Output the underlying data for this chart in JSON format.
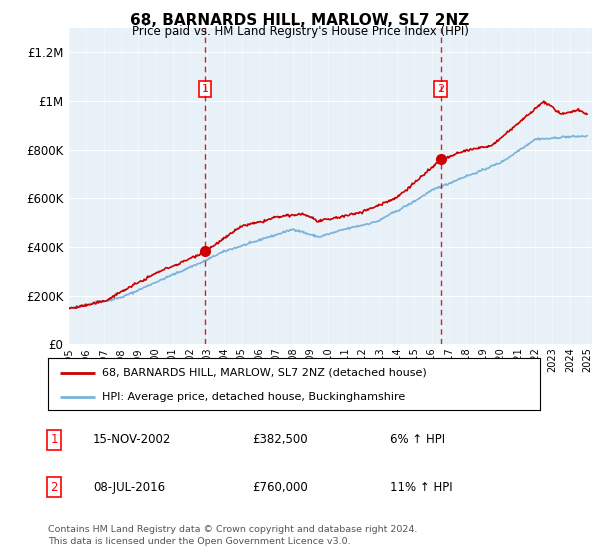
{
  "title": "68, BARNARDS HILL, MARLOW, SL7 2NZ",
  "subtitle": "Price paid vs. HM Land Registry's House Price Index (HPI)",
  "sale1_year": 2002.88,
  "sale1_price": 382500,
  "sale1_label": "1",
  "sale1_date": "15-NOV-2002",
  "sale1_pct": "6%",
  "sale2_year": 2016.52,
  "sale2_price": 760000,
  "sale2_label": "2",
  "sale2_date": "08-JUL-2016",
  "sale2_pct": "11%",
  "hpi_line_color": "#7ab3d9",
  "price_color": "#cc0000",
  "bg_color": "#e8f0f8",
  "legend1": "68, BARNARDS HILL, MARLOW, SL7 2NZ (detached house)",
  "legend2": "HPI: Average price, detached house, Buckinghamshire",
  "footer": "Contains HM Land Registry data © Crown copyright and database right 2024.\nThis data is licensed under the Open Government Licence v3.0.",
  "ylim_max": 1300000,
  "yticks": [
    0,
    200000,
    400000,
    600000,
    800000,
    1000000,
    1200000
  ],
  "noise_seed": 42
}
